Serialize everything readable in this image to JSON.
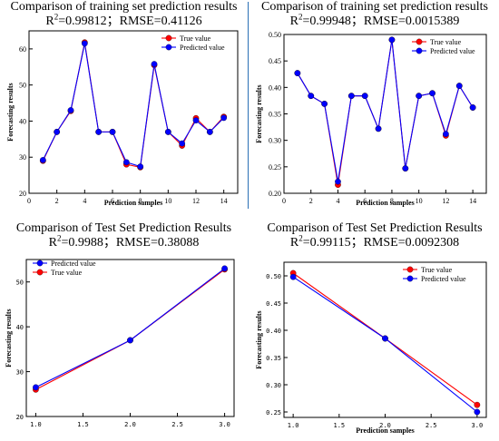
{
  "colors": {
    "true": "#ff0000",
    "pred": "#0000ff",
    "divider": "#2a6fb5"
  },
  "charts": [
    {
      "title": "Comparison of  training set prediction results",
      "metrics_prefix": "R",
      "metrics_sup": "2",
      "metrics_rest": "=0.99812；RMSE=0.41126",
      "xlabel": "Prediction samples",
      "ylabel": "Forecasting results",
      "legend_position": "top-right",
      "legend_labels": [
        "True value",
        "Predicted value"
      ]
    },
    {
      "title": "Comparison of  training set prediction results",
      "metrics_prefix": "R",
      "metrics_sup": "2",
      "metrics_rest": "=0.99948；RMSE=0.0015389",
      "xlabel": "Prediction samples",
      "ylabel": "Forecasting results",
      "legend_position": "top-right",
      "legend_labels": [
        "True value",
        "Predicted value"
      ]
    },
    {
      "title": "Comparison of Test Set Prediction Results",
      "metrics_prefix": "R",
      "metrics_sup": "2",
      "metrics_rest": "=0.9988；RMSE=0.38088",
      "xlabel": "",
      "ylabel": "Forecasting results",
      "legend_position": "top-left",
      "legend_labels": [
        "Predicted value",
        "True value"
      ]
    },
    {
      "title": "Comparison of Test Set Prediction Results",
      "metrics_prefix": "R",
      "metrics_sup": "2",
      "metrics_rest": "=0.99115；RMSE=0.0092308",
      "xlabel": "Prediction samples",
      "ylabel": "Forecasting results",
      "legend_position": "top-right",
      "legend_labels": [
        "True value",
        "Predicted value"
      ]
    }
  ],
  "chart_data": [
    {
      "type": "line",
      "x": [
        1,
        2,
        3,
        4,
        5,
        6,
        7,
        8,
        9,
        10,
        11,
        12,
        13,
        14
      ],
      "series": [
        {
          "name": "True value",
          "color": "#ff0000",
          "values": [
            29,
            37,
            42.8,
            61.8,
            37,
            37,
            28,
            27.2,
            55.5,
            37,
            33.2,
            40.8,
            37,
            41.2
          ]
        },
        {
          "name": "Predicted value",
          "color": "#0000ff",
          "values": [
            29.2,
            37,
            43,
            61.5,
            37,
            37,
            28.6,
            27.4,
            55.8,
            37,
            33.8,
            40.2,
            37,
            40.9
          ]
        }
      ],
      "xlim": [
        0,
        15
      ],
      "ylim": [
        20,
        65
      ],
      "xticks": [
        0,
        2,
        4,
        6,
        8,
        10,
        12,
        14
      ],
      "yticks": [
        20,
        30,
        40,
        50,
        60
      ],
      "xtick_labels": [
        "0",
        "2",
        "4",
        "6",
        "8",
        "10",
        "12",
        "14"
      ],
      "ytick_labels": [
        "20",
        "30",
        "40",
        "50",
        "60"
      ],
      "grid": false
    },
    {
      "type": "line",
      "x": [
        1,
        2,
        3,
        4,
        5,
        6,
        7,
        8,
        9,
        10,
        11,
        12,
        13,
        14
      ],
      "series": [
        {
          "name": "True value",
          "color": "#ff0000",
          "values": [
            0.427,
            0.384,
            0.369,
            0.216,
            0.384,
            0.384,
            0.322,
            0.49,
            0.247,
            0.384,
            0.389,
            0.309,
            0.403,
            0.362
          ]
        },
        {
          "name": "Predicted value",
          "color": "#0000ff",
          "values": [
            0.427,
            0.384,
            0.369,
            0.222,
            0.384,
            0.384,
            0.322,
            0.49,
            0.247,
            0.384,
            0.389,
            0.312,
            0.403,
            0.362
          ]
        }
      ],
      "xlim": [
        0,
        15
      ],
      "ylim": [
        0.2,
        0.5
      ],
      "xticks": [
        0,
        2,
        4,
        6,
        8,
        10,
        12,
        14
      ],
      "yticks": [
        0.2,
        0.25,
        0.3,
        0.35,
        0.4,
        0.45,
        0.5
      ],
      "xtick_labels": [
        "0",
        "2",
        "4",
        "6",
        "8",
        "10",
        "12",
        "14"
      ],
      "ytick_labels": [
        "0.20",
        "0.25",
        "0.30",
        "0.35",
        "0.40",
        "0.45",
        "0.50"
      ],
      "grid": false
    },
    {
      "type": "line",
      "x": [
        1,
        2,
        3
      ],
      "series": [
        {
          "name": "Predicted value",
          "color": "#0000ff",
          "values": [
            26.5,
            37,
            53
          ]
        },
        {
          "name": "True value",
          "color": "#ff0000",
          "values": [
            26,
            37,
            52.8
          ]
        }
      ],
      "xlim": [
        0.9,
        3.1
      ],
      "ylim": [
        20,
        55
      ],
      "xticks": [
        1.0,
        1.5,
        2.0,
        2.5,
        3.0
      ],
      "yticks": [
        20,
        30,
        40,
        50
      ],
      "xtick_labels": [
        "1.0",
        "1.5",
        "2.0",
        "2.5",
        "3.0"
      ],
      "ytick_labels": [
        "20",
        "30",
        "40",
        "50"
      ],
      "grid": false
    },
    {
      "type": "line",
      "x": [
        1,
        2,
        3
      ],
      "series": [
        {
          "name": "True value",
          "color": "#ff0000",
          "values": [
            0.505,
            0.385,
            0.263
          ]
        },
        {
          "name": "Predicted value",
          "color": "#0000ff",
          "values": [
            0.498,
            0.385,
            0.25
          ]
        }
      ],
      "xlim": [
        0.9,
        3.1
      ],
      "ylim": [
        0.24,
        0.525
      ],
      "xticks": [
        1.0,
        1.5,
        2.0,
        2.5,
        3.0
      ],
      "yticks": [
        0.25,
        0.3,
        0.35,
        0.4,
        0.45,
        0.5
      ],
      "xtick_labels": [
        "1.0",
        "1.5",
        "2.0",
        "2.5",
        "3.0"
      ],
      "ytick_labels": [
        "0.25",
        "0.30",
        "0.35",
        "0.40",
        "0.45",
        "0.50"
      ],
      "grid": false
    }
  ]
}
